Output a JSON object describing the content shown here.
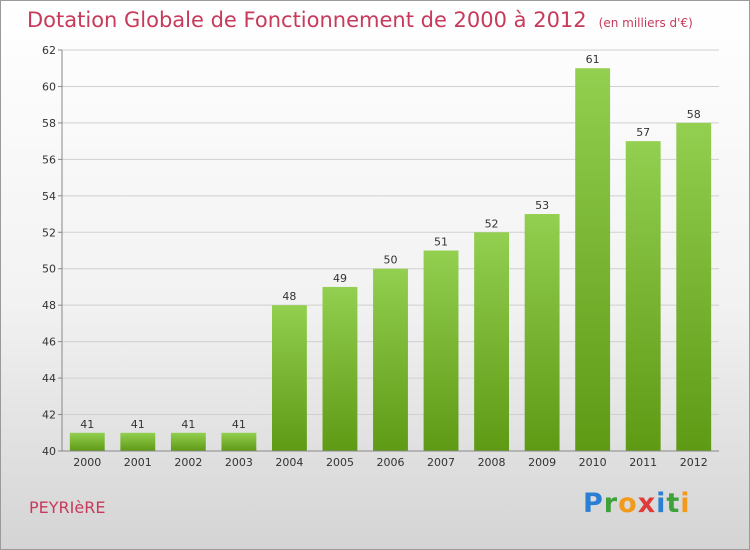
{
  "header": {
    "title": "Dotation Globale de Fonctionnement de 2000 à 2012",
    "unit": "(en milliers d'€)"
  },
  "footer": {
    "commune": "PEYRIèRE",
    "logo_letters": [
      "P",
      "r",
      "o",
      "x",
      "i",
      "t",
      "i"
    ],
    "logo_colors": [
      "#2a7fd4",
      "#3fa13a",
      "#f29a1b",
      "#e03a3a",
      "#2a7fd4",
      "#3fa13a",
      "#f29a1b"
    ]
  },
  "colors": {
    "bar_top": "#93cf50",
    "bar_bottom": "#5e9a14",
    "grid": "#d0d0d0",
    "axis_text": "#333333",
    "title": "#c73a5a"
  },
  "chart_data": {
    "type": "bar",
    "title": "Dotation Globale de Fonctionnement de 2000 à 2012",
    "categories": [
      "2000",
      "2001",
      "2002",
      "2003",
      "2004",
      "2005",
      "2006",
      "2007",
      "2008",
      "2009",
      "2010",
      "2011",
      "2012"
    ],
    "values": [
      41,
      41,
      41,
      41,
      48,
      49,
      50,
      51,
      52,
      53,
      61,
      57,
      58
    ],
    "data_labels": [
      "41",
      "41",
      "41",
      "41",
      "48",
      "49",
      "50",
      "51",
      "52",
      "53",
      "61",
      "57",
      "58"
    ],
    "ylim": [
      40,
      62
    ],
    "yticks": [
      "40",
      "42",
      "44",
      "46",
      "48",
      "50",
      "52",
      "54",
      "56",
      "58",
      "60",
      "62"
    ],
    "grid": true,
    "legend": "none"
  }
}
